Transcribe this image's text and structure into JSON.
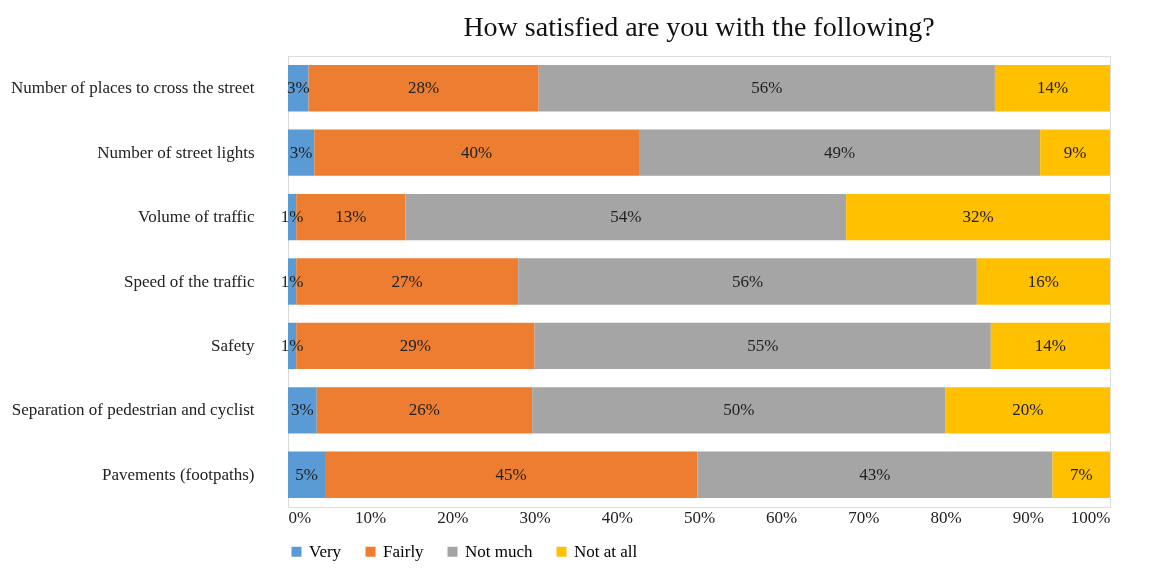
{
  "chart_data": {
    "type": "bar",
    "orientation": "horizontal",
    "stacked": true,
    "title": "How satisfied are you with the following?",
    "categories": [
      "Number of places to cross the street",
      "Number of street lights",
      "Volume of traffic",
      "Speed of the traffic",
      "Safety",
      "Separation of pedestrian and cyclist",
      "Pavements (footpaths)"
    ],
    "series": [
      {
        "name": "Very",
        "color": "#5b9bd5",
        "values": [
          2.5,
          3.2,
          1,
          1,
          1,
          3.5,
          4.5
        ],
        "value_labels": [
          "3%",
          "3%",
          "1%",
          "1%",
          "1%",
          "3%",
          "5%"
        ]
      },
      {
        "name": "Fairly",
        "color": "#ed7d31",
        "values": [
          28,
          39.5,
          13.3,
          27,
          29,
          26.2,
          45.3
        ],
        "value_labels": [
          "28%",
          "40%",
          "13%",
          "27%",
          "29%",
          "26%",
          "45%"
        ]
      },
      {
        "name": "Not much",
        "color": "#a5a5a5",
        "values": [
          55.5,
          48.8,
          53.6,
          55.8,
          55.5,
          50.3,
          43.2
        ],
        "value_labels": [
          "56%",
          "49%",
          "54%",
          "56%",
          "55%",
          "50%",
          "43%"
        ]
      },
      {
        "name": "Not at all",
        "color": "#ffc000",
        "values": [
          14,
          8.5,
          32.1,
          16.2,
          14.5,
          20,
          7
        ],
        "value_labels": [
          "14%",
          "9%",
          "32%",
          "16%",
          "14%",
          "20%",
          "7%"
        ]
      }
    ],
    "xlim": [
      0,
      100
    ],
    "xticks": [
      {
        "value": 0,
        "label": "0%"
      },
      {
        "value": 10,
        "label": "10%"
      },
      {
        "value": 20,
        "label": "20%"
      },
      {
        "value": 30,
        "label": "30%"
      },
      {
        "value": 40,
        "label": "40%"
      },
      {
        "value": 50,
        "label": "50%"
      },
      {
        "value": 60,
        "label": "60%"
      },
      {
        "value": 70,
        "label": "70%"
      },
      {
        "value": 80,
        "label": "80%"
      },
      {
        "value": 90,
        "label": "90%"
      },
      {
        "value": 100,
        "label": "100%"
      }
    ],
    "grid": false,
    "legend": "bottom"
  }
}
